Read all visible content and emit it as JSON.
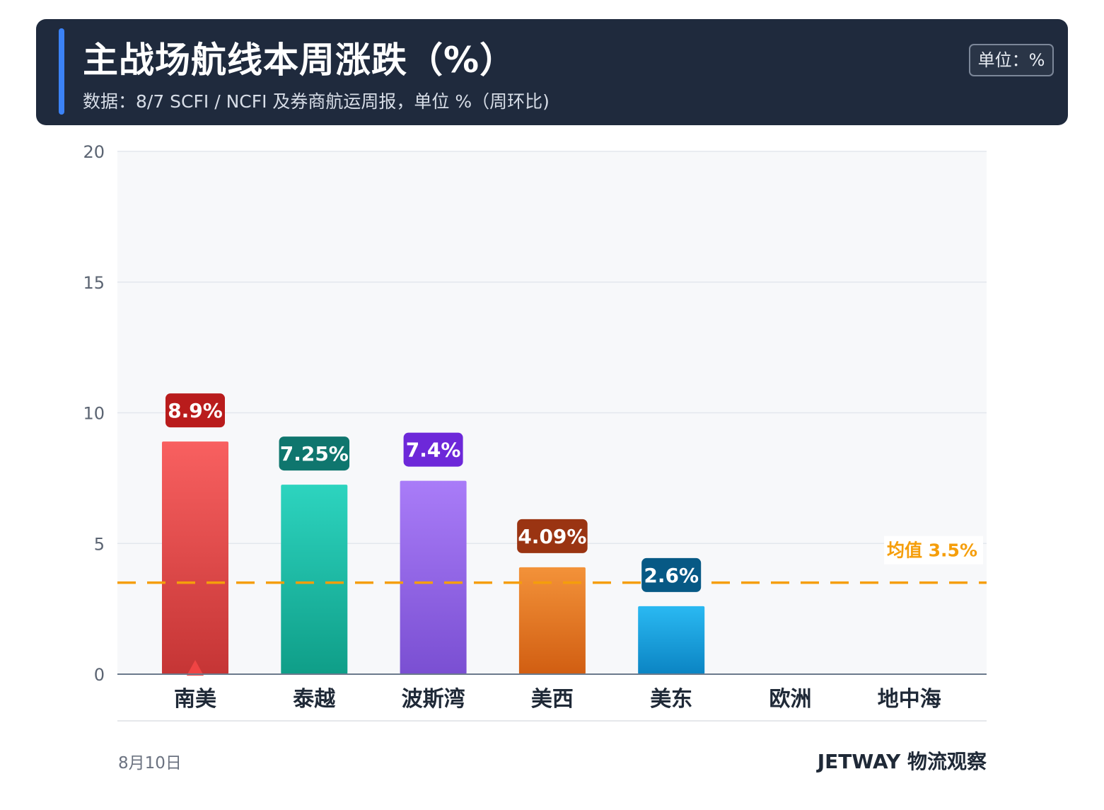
{
  "header": {
    "title": "主战场航线本周涨跌（%）",
    "subtitle": "数据：8/7 SCFI / NCFI 及券商航运周报，单位 %（周环比)",
    "unit_badge": "单位：%"
  },
  "chart_data": {
    "type": "bar",
    "categories": [
      "南美",
      "泰越",
      "波斯湾",
      "美西",
      "美东",
      "欧洲",
      "地中海"
    ],
    "values": [
      8.9,
      7.25,
      7.4,
      4.09,
      2.6,
      null,
      null
    ],
    "value_labels": [
      "8.9%",
      "7.25%",
      "7.4%",
      "4.09%",
      "2.6%",
      "",
      ""
    ],
    "ylim": [
      0,
      20
    ],
    "yticks": [
      0,
      5,
      10,
      15,
      20
    ],
    "xlabel": "",
    "ylabel": "",
    "grid": true,
    "average": {
      "value": 3.5,
      "label": "均值 3.5%",
      "color": "#f59e0b"
    },
    "bar_colors": [
      {
        "top": "#f86060",
        "bottom": "#c53535",
        "label_bg": "#b91c1c"
      },
      {
        "top": "#2dd4bf",
        "bottom": "#0f9e88",
        "label_bg": "#0f766e"
      },
      {
        "top": "#a97cf8",
        "bottom": "#7a4fd2",
        "label_bg": "#6d28d9"
      },
      {
        "top": "#f39239",
        "bottom": "#d15e12",
        "label_bg": "#9a3412"
      },
      {
        "top": "#2ab9f2",
        "bottom": "#0b84c3",
        "label_bg": "#075985"
      }
    ],
    "marker": {
      "category": "南美",
      "shape": "up-triangle",
      "color": "#ef4444"
    }
  },
  "footer": {
    "date": "8月10日",
    "brand": "JETWAY 物流观察"
  }
}
